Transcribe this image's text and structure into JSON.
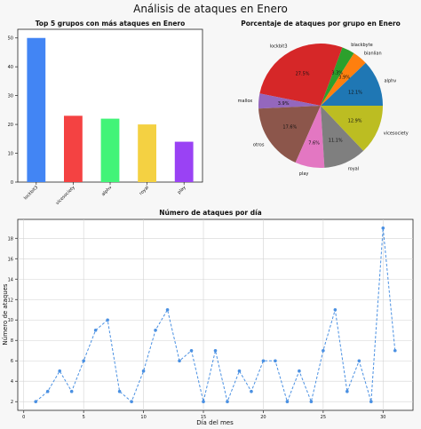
{
  "suptitle": "Análisis de ataques en Enero",
  "chart_data": [
    {
      "type": "bar",
      "title": "Top 5 grupos con más ataques en Enero",
      "categories": [
        "lockbit3",
        "vicesociety",
        "alphv",
        "royal",
        "play"
      ],
      "values": [
        50,
        23,
        22,
        20,
        14
      ],
      "colors": [
        "#4285f4",
        "#f44242",
        "#42f478",
        "#f4d142",
        "#9a42f4"
      ],
      "ylim": [
        0,
        53
      ],
      "yticks": [
        0,
        10,
        20,
        30,
        40,
        50
      ],
      "grid": false
    },
    {
      "type": "pie",
      "title": "Porcentaje de ataques por grupo en Enero",
      "slices": [
        {
          "label": "alphv",
          "value": 12.1,
          "pct": "12.1%",
          "color": "#1f77b4"
        },
        {
          "label": "bianlian",
          "value": 3.9,
          "pct": "3.9%",
          "color": "#ff7f0e"
        },
        {
          "label": "blackbyte",
          "value": 3.3,
          "pct": "3.3%",
          "color": "#2ca02c"
        },
        {
          "label": "lockbit3",
          "value": 27.5,
          "pct": "27.5%",
          "color": "#d62728"
        },
        {
          "label": "mallox",
          "value": 3.9,
          "pct": "3.9%",
          "color": "#9467bd"
        },
        {
          "label": "otros",
          "value": 17.6,
          "pct": "17.6%",
          "color": "#8c564b"
        },
        {
          "label": "play",
          "value": 7.6,
          "pct": "7.6%",
          "color": "#e377c2"
        },
        {
          "label": "royal",
          "value": 11.1,
          "pct": "11.1%",
          "color": "#7f7f7f"
        },
        {
          "label": "vicesociety",
          "value": 12.9,
          "pct": "12.9%",
          "color": "#bcbd22"
        }
      ]
    },
    {
      "type": "line",
      "title": "Número de ataques por día",
      "xlabel": "Día del mes",
      "ylabel": "Número de ataques",
      "x": [
        1,
        2,
        3,
        4,
        5,
        6,
        7,
        8,
        9,
        10,
        11,
        12,
        13,
        14,
        15,
        16,
        17,
        18,
        19,
        20,
        21,
        22,
        23,
        24,
        25,
        26,
        27,
        28,
        29,
        30,
        31
      ],
      "y": [
        2,
        3,
        5,
        3,
        6,
        9,
        10,
        3,
        2,
        5,
        9,
        11,
        6,
        7,
        2,
        7,
        2,
        5,
        3,
        6,
        6,
        2,
        5,
        2,
        7,
        11,
        3,
        6,
        2,
        19,
        7
      ],
      "xlim": [
        -0.5,
        32.5
      ],
      "ylim": [
        1.15,
        19.85
      ],
      "xticks": [
        0,
        5,
        10,
        15,
        20,
        25,
        30
      ],
      "yticks": [
        2,
        4,
        6,
        8,
        10,
        12,
        14,
        16,
        18
      ],
      "color": "#4a90e2",
      "grid": true
    }
  ]
}
